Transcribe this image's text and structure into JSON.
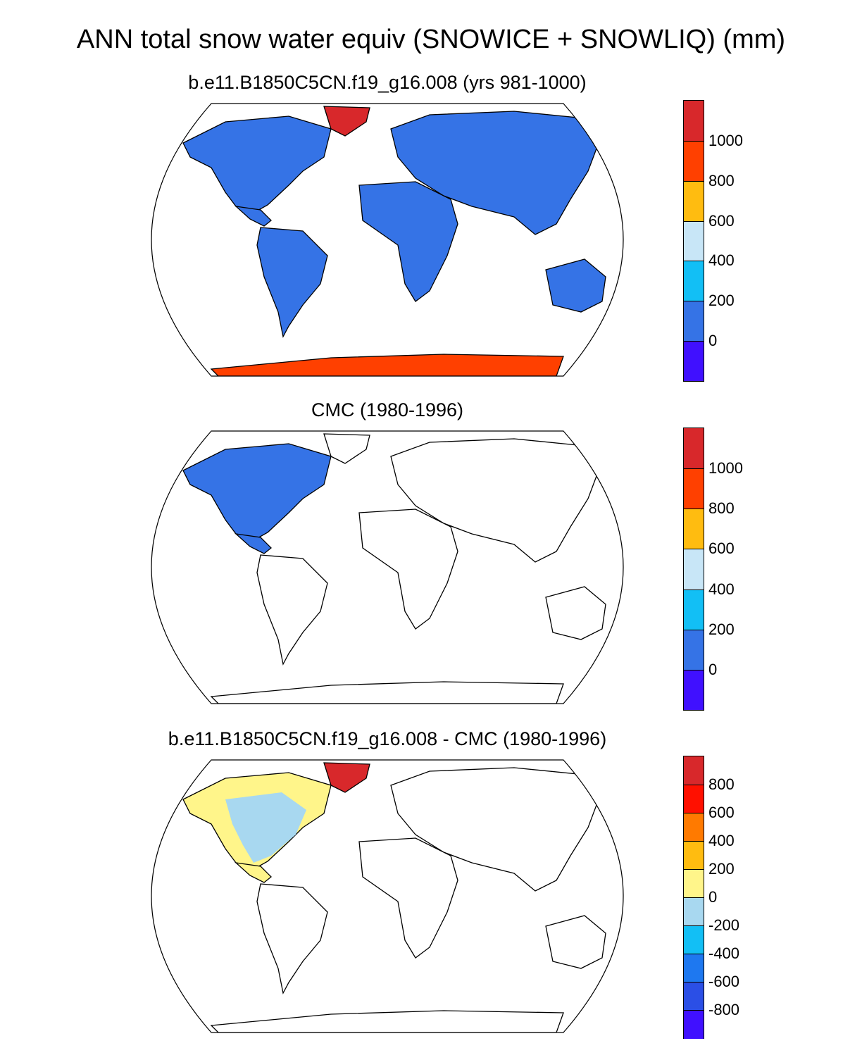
{
  "title": "ANN total snow water equiv (SNOWICE + SNOWLIQ) (mm)",
  "panels": [
    {
      "id": "model",
      "subtitle": "b.e11.B1850C5CN.f19_g16.008 (yrs 981-1000)",
      "colorbar": {
        "colors": [
          "#4010ff",
          "#3573e6",
          "#12bff5",
          "#c8e6f7",
          "#ffbc10",
          "#ff4000",
          "#d8282b"
        ],
        "labels": [
          "0",
          "200",
          "400",
          "600",
          "800",
          "1000"
        ]
      },
      "coverage": {
        "land_fill": "#3573e6",
        "greenland_fill": "#d8282b",
        "antarctica_fill": "#ff4000"
      }
    },
    {
      "id": "obs",
      "subtitle": "CMC (1980-1996)",
      "colorbar": {
        "colors": [
          "#4010ff",
          "#3573e6",
          "#12bff5",
          "#c8e6f7",
          "#ffbc10",
          "#ff4000",
          "#d8282b"
        ],
        "labels": [
          "0",
          "200",
          "400",
          "600",
          "800",
          "1000"
        ]
      },
      "coverage": {
        "region": "North America only",
        "land_fill": "#3573e6"
      }
    },
    {
      "id": "diff",
      "subtitle": "b.e11.B1850C5CN.f19_g16.008 - CMC (1980-1996)",
      "colorbar": {
        "colors": [
          "#4010ff",
          "#2b4fe6",
          "#1e78f0",
          "#12bff5",
          "#a8d8f0",
          "#fff58a",
          "#ffbc10",
          "#ff7a00",
          "#ff1000",
          "#d8282b"
        ],
        "labels": [
          "-800",
          "-600",
          "-400",
          "-200",
          "0",
          "200",
          "400",
          "600",
          "800"
        ]
      },
      "coverage": {
        "region": "North America only",
        "pos_fill": "#fff58a",
        "neg_fill": "#a8d8f0",
        "greenland_fill": "#d8282b"
      }
    }
  ]
}
